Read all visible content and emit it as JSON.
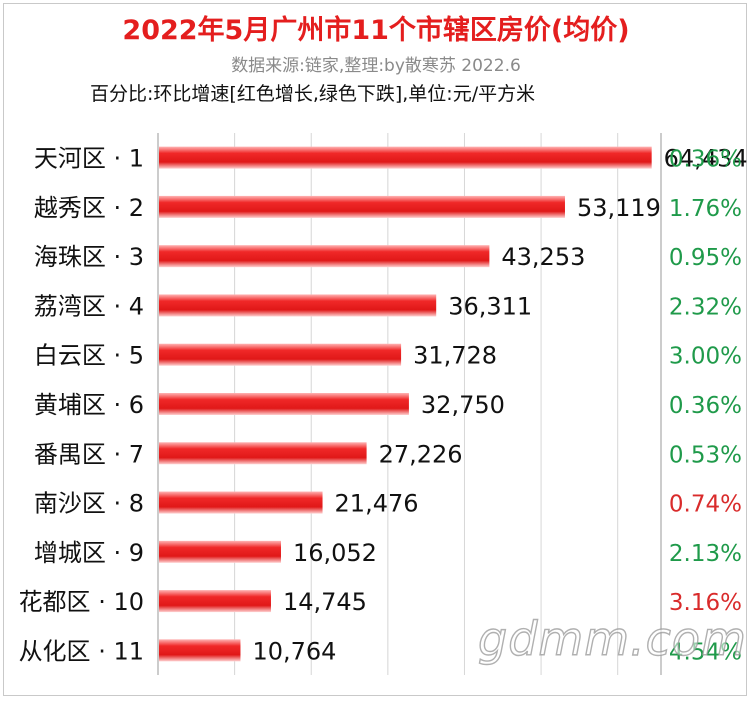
{
  "header": {
    "title": "2022年5月广州市11个市辖区房价(均价)",
    "subtitle": "数据来源:链家,整理:by散寒苏 2022.6",
    "note": "百分比:环比增速[红色增长,绿色下跌],单位:元/平方米"
  },
  "watermark": "gdmm.com",
  "colors": {
    "title": "#e41e1e",
    "bar": "#f02828",
    "increase": "#d92b2b",
    "decrease": "#1f9a4a",
    "text": "#111111",
    "subtitle": "#8a8a8a",
    "grid": "#d6d6d6"
  },
  "chart_data": {
    "type": "bar",
    "orientation": "horizontal",
    "categories": [
      "天河区 · 1",
      "越秀区 · 2",
      "海珠区 · 3",
      "荔湾区 · 4",
      "白云区 · 5",
      "黄埔区 · 6",
      "番禺区 · 7",
      "南沙区 · 8",
      "增城区 · 9",
      "花都区 · 10",
      "从化区 · 11"
    ],
    "values": [
      64434,
      53119,
      43253,
      36311,
      31728,
      32750,
      27226,
      21476,
      16052,
      14745,
      10764
    ],
    "value_labels": [
      "64,434",
      "53,119",
      "43,253",
      "36,311",
      "31,728",
      "32,750",
      "27,226",
      "21,476",
      "16,052",
      "14,745",
      "10,764"
    ],
    "mom_change": [
      "0.36%",
      "1.76%",
      "0.95%",
      "2.32%",
      "3.00%",
      "0.36%",
      "0.53%",
      "0.74%",
      "2.13%",
      "3.16%",
      "4.54%"
    ],
    "mom_direction": [
      "down",
      "down",
      "down",
      "down",
      "down",
      "down",
      "down",
      "up",
      "down",
      "up",
      "down"
    ],
    "xlim": [
      0,
      65000
    ],
    "grid": true
  }
}
